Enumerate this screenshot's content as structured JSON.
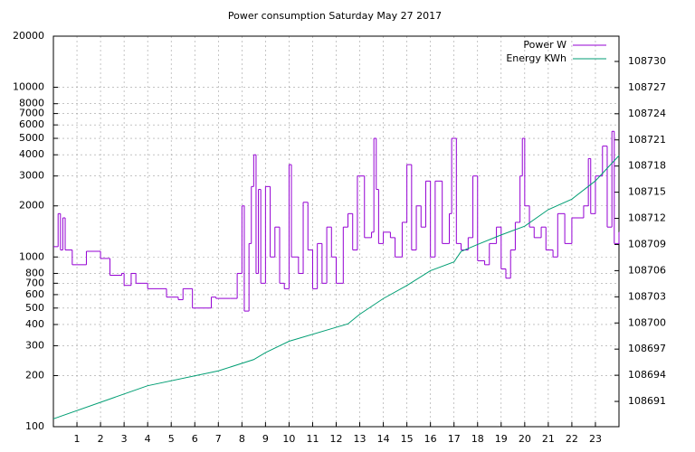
{
  "chart_data": {
    "type": "line",
    "title": "Power consumption Saturday May 27 2017",
    "yscale": "log",
    "grid": true,
    "legend": "top-right",
    "xlim": [
      0,
      24
    ],
    "xticks": [
      1,
      2,
      3,
      4,
      5,
      6,
      7,
      8,
      9,
      10,
      11,
      12,
      13,
      14,
      15,
      16,
      17,
      18,
      19,
      20,
      21,
      22,
      23
    ],
    "ylim": [
      100,
      20000
    ],
    "yticks": [
      100,
      200,
      300,
      400,
      500,
      600,
      700,
      800,
      1000,
      2000,
      3000,
      4000,
      5000,
      6000,
      7000,
      8000,
      10000,
      20000
    ],
    "y2lim": [
      108688.1,
      108732.9
    ],
    "y2ticks": [
      108691,
      108694,
      108697,
      108700,
      108703,
      108706,
      108709,
      108712,
      108715,
      108718,
      108721,
      108724,
      108727,
      108730
    ],
    "series": [
      {
        "name": "Power W",
        "color": "#9400d3",
        "step": true,
        "x": [
          0,
          0.2,
          0.3,
          0.4,
          0.5,
          0.8,
          1.4,
          2,
          2.4,
          2.9,
          3,
          3.3,
          3.5,
          4,
          4.8,
          5.3,
          5.5,
          5.9,
          6.7,
          6.9,
          7.5,
          7.8,
          8,
          8.1,
          8.3,
          8.4,
          8.5,
          8.6,
          8.7,
          8.8,
          9,
          9.2,
          9.4,
          9.6,
          9.8,
          10,
          10.1,
          10.4,
          10.6,
          10.8,
          11,
          11.2,
          11.4,
          11.6,
          11.8,
          12,
          12.3,
          12.5,
          12.7,
          12.9,
          13.2,
          13.5,
          13.6,
          13.7,
          13.8,
          14,
          14.3,
          14.5,
          14.8,
          15,
          15.2,
          15.4,
          15.6,
          15.8,
          16,
          16.2,
          16.5,
          16.8,
          16.9,
          17.1,
          17.3,
          17.6,
          17.8,
          18,
          18.3,
          18.5,
          18.8,
          19,
          19.2,
          19.4,
          19.6,
          19.8,
          19.9,
          20,
          20.2,
          20.4,
          20.7,
          20.9,
          21.2,
          21.4,
          21.7,
          22,
          22.5,
          22.7,
          22.8,
          23,
          23.3,
          23.5,
          23.7,
          23.8,
          24
        ],
        "values": [
          1150,
          1800,
          1100,
          1700,
          1100,
          900,
          1080,
          980,
          780,
          800,
          680,
          800,
          700,
          650,
          580,
          560,
          650,
          500,
          580,
          570,
          570,
          800,
          2000,
          480,
          1200,
          2600,
          4000,
          800,
          2500,
          700,
          2600,
          1000,
          1500,
          700,
          650,
          3500,
          1000,
          800,
          2100,
          1100,
          650,
          1200,
          700,
          1500,
          1000,
          700,
          1500,
          1800,
          1100,
          3000,
          1300,
          1400,
          5000,
          2500,
          1200,
          1400,
          1300,
          1000,
          1600,
          3500,
          1100,
          2000,
          1500,
          2800,
          1000,
          2800,
          1200,
          1800,
          5000,
          1200,
          1100,
          1300,
          3000,
          950,
          900,
          1200,
          1500,
          850,
          750,
          1100,
          1600,
          3000,
          5000,
          2000,
          1500,
          1300,
          1500,
          1100,
          1000,
          1800,
          1200,
          1700,
          2000,
          3800,
          1800,
          3000,
          4500,
          1500,
          5500,
          1200,
          1400
        ]
      },
      {
        "name": "Energy KWh",
        "color": "#009e73",
        "axis": "y2",
        "x": [
          0,
          4,
          7,
          8.5,
          9,
          10,
          12,
          12.5,
          13,
          14,
          15,
          16,
          17,
          17.3,
          18,
          19,
          20,
          21,
          22,
          23,
          24
        ],
        "values": [
          108689.0,
          108692.8,
          108694.5,
          108695.8,
          108696.6,
          108697.9,
          108699.5,
          108699.9,
          108701,
          108702.8,
          108704.3,
          108706,
          108707,
          108708.2,
          108709,
          108710.1,
          108711.1,
          108713,
          108714.2,
          108716.3,
          108719.2
        ]
      }
    ]
  }
}
